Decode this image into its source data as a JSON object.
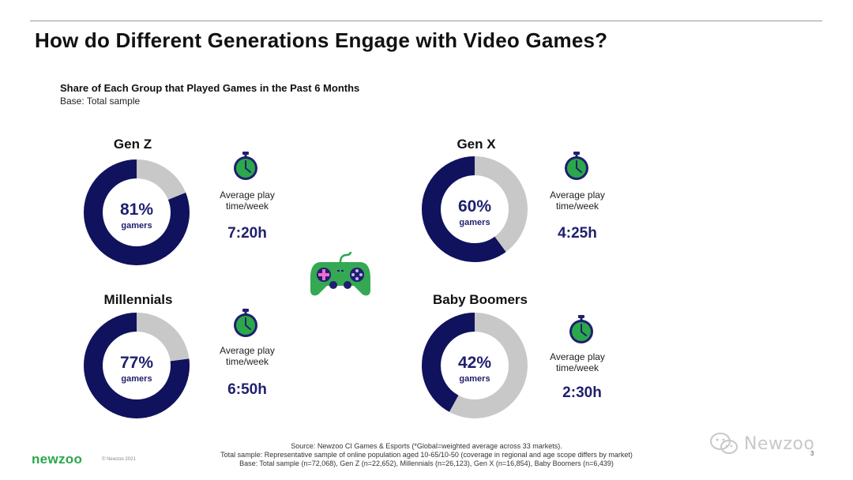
{
  "slide": {
    "title": "How do Different Generations Engage with Video Games?",
    "subtitle": "Share of Each Group that Played Games in the Past 6 Months",
    "base": "Base: Total sample",
    "average_label_line1": "Average play",
    "average_label_line2": "time/week",
    "center_sub_label": "gamers",
    "page_number": "3"
  },
  "colors": {
    "filled": "#10125e",
    "remainder": "#c8c8c8",
    "accent": "#2aa84a"
  },
  "icons": [
    "stopwatch-icon",
    "game-controller-icon",
    "wechat-icon"
  ],
  "chart_data": {
    "type": "pie",
    "variant": "donut",
    "title": "Share of Each Group that Played Games in the Past 6 Months",
    "categories": [
      "Gen Z",
      "Gen X",
      "Millennials",
      "Baby Boomers"
    ],
    "values": [
      81,
      60,
      77,
      42
    ],
    "value_labels": [
      "81%",
      "60%",
      "77%",
      "42%"
    ],
    "unit": "%",
    "avg_play_time_week": [
      "7:20h",
      "4:25h",
      "6:50h",
      "2:30h"
    ]
  },
  "footer": {
    "source": "Source: Newzoo CI Games & Esports (*Global=weighted average across 33 markets).",
    "total_sample": "Total sample: Representative sample of online population aged 10-65/10-50 (coverage in regional and age scope differs by market)",
    "base_detail": "Base: Total sample (n=72,068), Gen Z (n=22,652), Millennials (n=26,123), Gen X (n=16,854), Baby Boomers (n=6,439)",
    "logo": "newzoo",
    "copyright": "© Newzoo 2021",
    "watermark": "Newzoo"
  }
}
